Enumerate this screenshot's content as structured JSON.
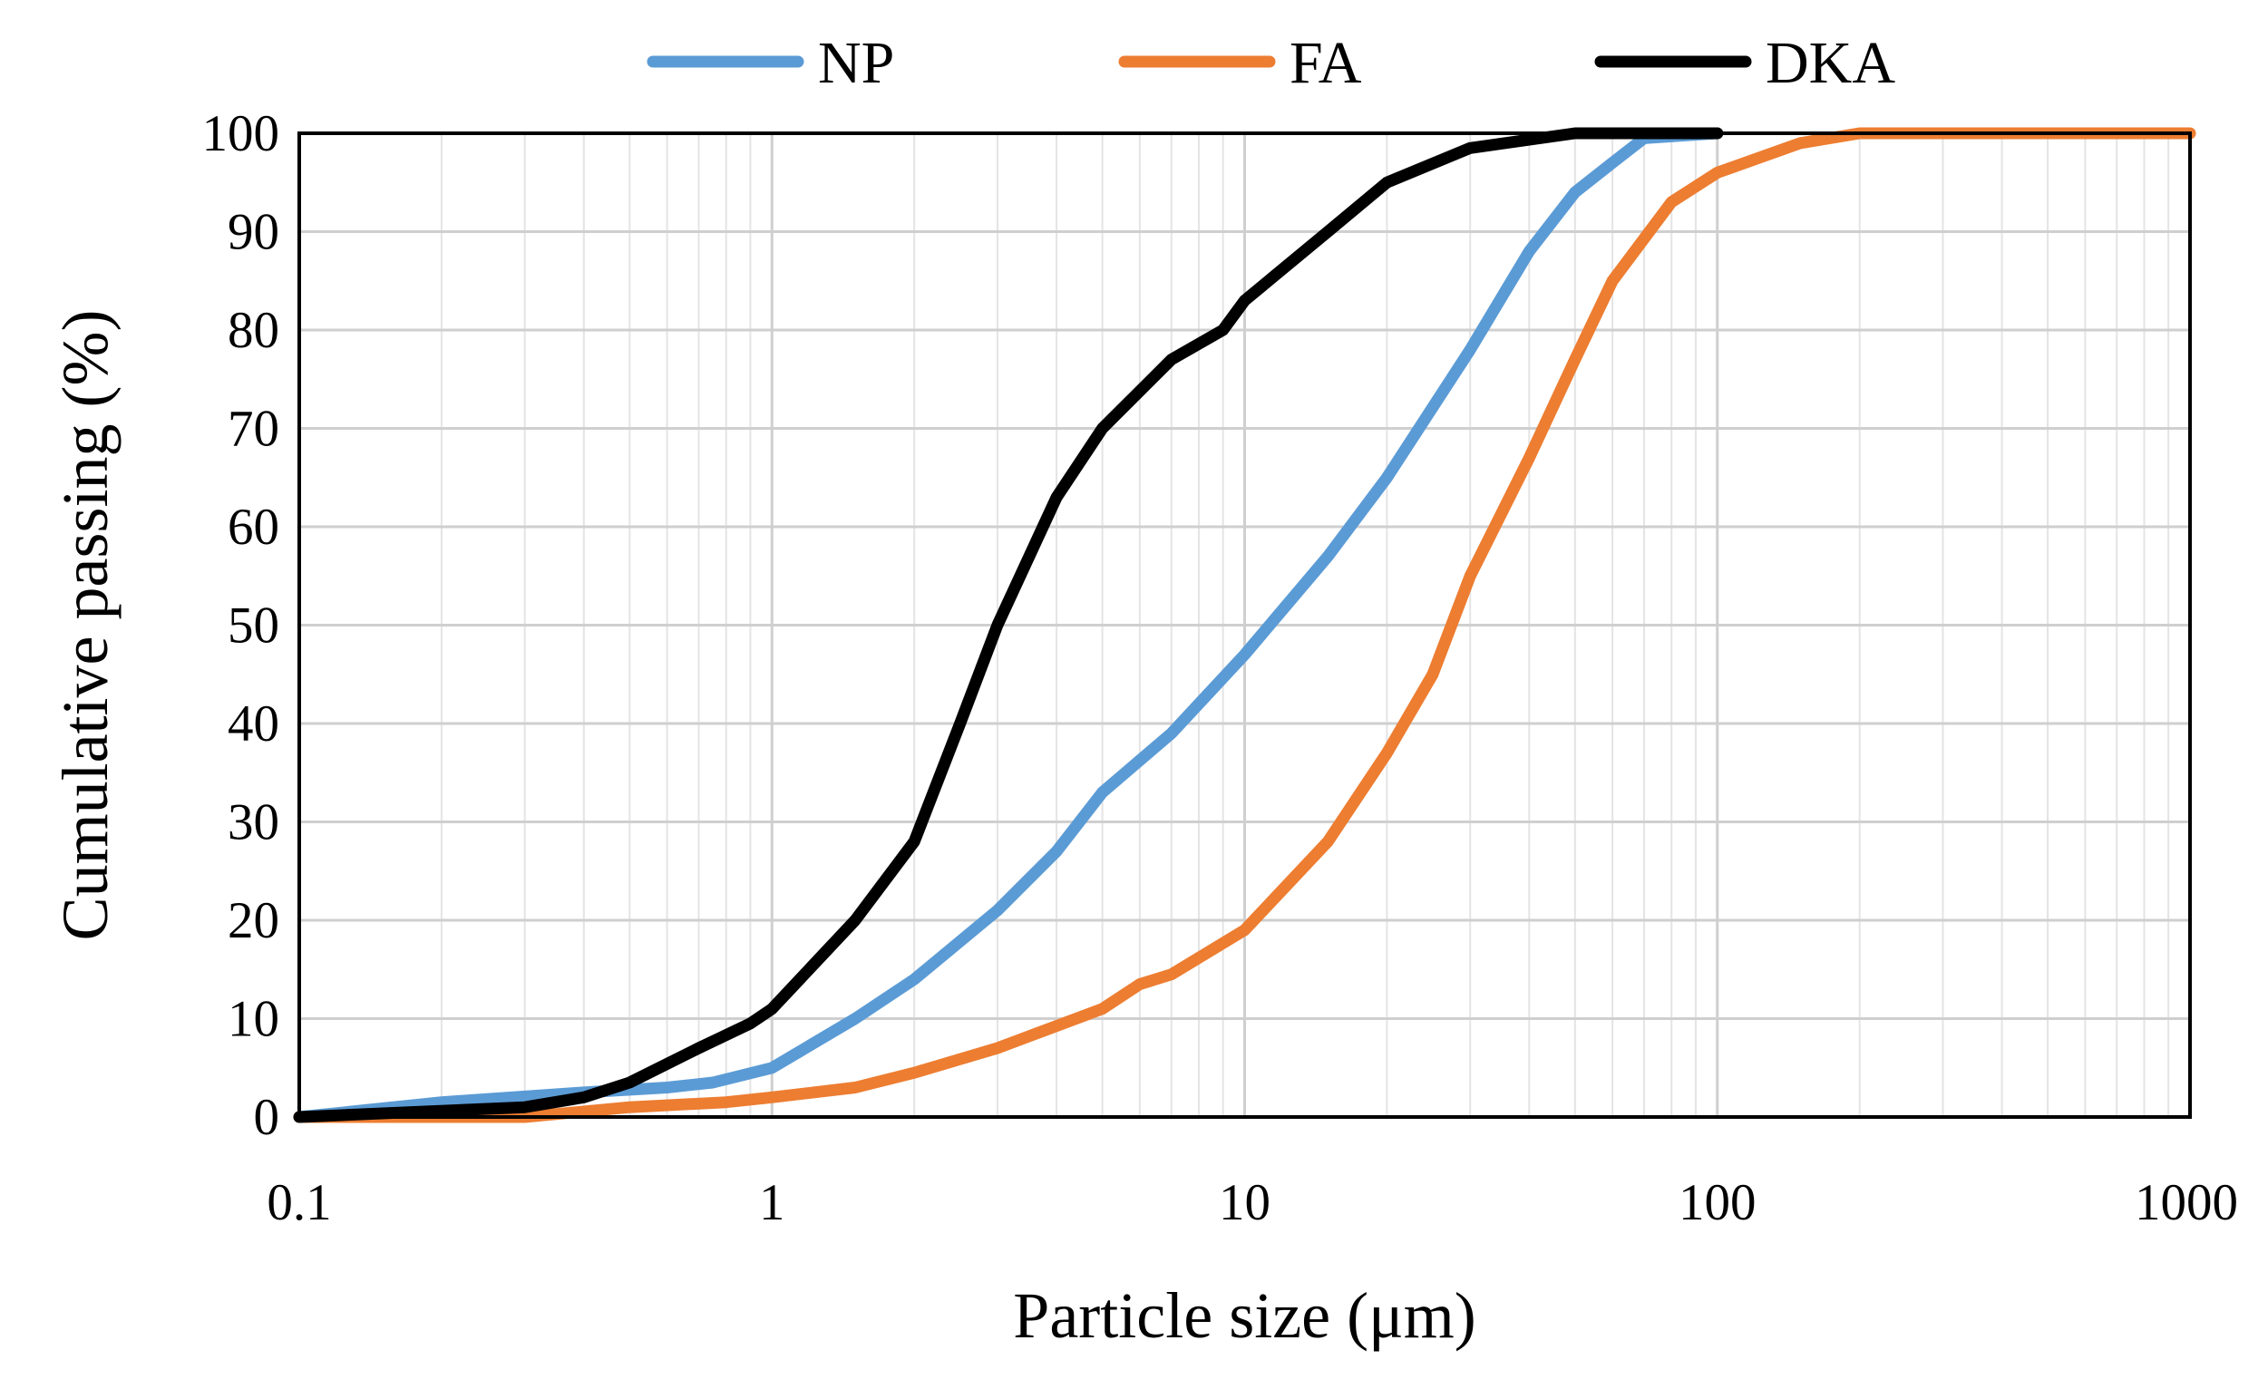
{
  "chart_data": {
    "type": "line",
    "title": "",
    "xlabel": "Particle size (μm)",
    "ylabel": "Cumulative passing (%)",
    "x_scale": "log",
    "xlim": [
      0.1,
      1000
    ],
    "ylim": [
      0,
      100
    ],
    "x_ticks": [
      "0.1",
      "1",
      "10",
      "100",
      "1000"
    ],
    "y_ticks": [
      "0",
      "10",
      "20",
      "30",
      "40",
      "50",
      "60",
      "70",
      "80",
      "90",
      "100"
    ],
    "grid": true,
    "legend_position": "top",
    "series": [
      {
        "name": "NP",
        "color": "#5b9bd5",
        "points": [
          [
            0.1,
            0
          ],
          [
            0.2,
            1.5
          ],
          [
            0.4,
            2.5
          ],
          [
            0.6,
            3
          ],
          [
            0.75,
            3.5
          ],
          [
            1,
            5
          ],
          [
            1.5,
            10
          ],
          [
            2,
            14
          ],
          [
            3,
            21
          ],
          [
            4,
            27
          ],
          [
            5,
            33
          ],
          [
            7,
            39
          ],
          [
            10,
            47
          ],
          [
            15,
            57
          ],
          [
            20,
            65
          ],
          [
            30,
            78
          ],
          [
            40,
            88
          ],
          [
            50,
            94
          ],
          [
            60,
            97
          ],
          [
            70,
            99.5
          ],
          [
            100,
            100
          ]
        ]
      },
      {
        "name": "FA",
        "color": "#ed7d31",
        "points": [
          [
            0.1,
            0
          ],
          [
            0.3,
            0
          ],
          [
            0.5,
            1
          ],
          [
            0.8,
            1.5
          ],
          [
            1,
            2
          ],
          [
            1.5,
            3
          ],
          [
            2,
            4.5
          ],
          [
            3,
            7
          ],
          [
            5,
            11
          ],
          [
            6,
            13.5
          ],
          [
            7,
            14.5
          ],
          [
            10,
            19
          ],
          [
            15,
            28
          ],
          [
            20,
            37
          ],
          [
            25,
            45
          ],
          [
            30,
            55
          ],
          [
            40,
            67
          ],
          [
            50,
            77
          ],
          [
            60,
            85
          ],
          [
            80,
            93
          ],
          [
            100,
            96
          ],
          [
            150,
            99
          ],
          [
            200,
            100
          ],
          [
            1000,
            100
          ]
        ]
      },
      {
        "name": "DKA",
        "color": "#000000",
        "points": [
          [
            0.1,
            0
          ],
          [
            0.3,
            1
          ],
          [
            0.4,
            2
          ],
          [
            0.5,
            3.5
          ],
          [
            0.7,
            7
          ],
          [
            0.9,
            9.5
          ],
          [
            1,
            11
          ],
          [
            1.5,
            20
          ],
          [
            2,
            28
          ],
          [
            2.5,
            40
          ],
          [
            3,
            50
          ],
          [
            4,
            63
          ],
          [
            5,
            70
          ],
          [
            7,
            77
          ],
          [
            9,
            80
          ],
          [
            10,
            83
          ],
          [
            15,
            90
          ],
          [
            20,
            95
          ],
          [
            30,
            98.5
          ],
          [
            50,
            100
          ],
          [
            100,
            100
          ]
        ]
      }
    ]
  }
}
